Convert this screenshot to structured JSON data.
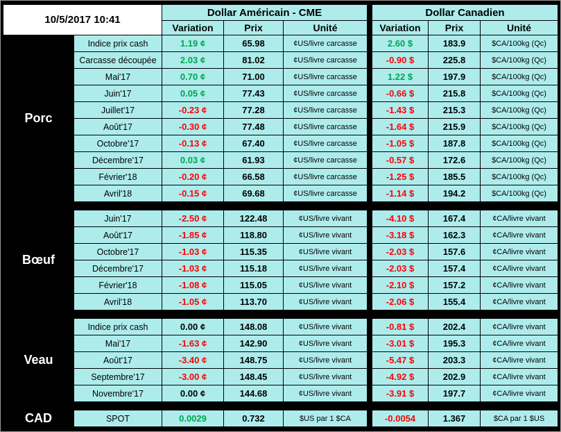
{
  "meta": {
    "timestamp": "10/5/2017 10:41"
  },
  "header": {
    "us_title": "Dollar Américain - CME",
    "ca_title": "Dollar Canadien",
    "columns": {
      "variation": "Variation",
      "prix": "Prix",
      "unite": "Unité"
    }
  },
  "colors": {
    "up": "#00A550",
    "down": "#FF0000",
    "flat": "#000000",
    "cell_bg": "#AEECEC",
    "board_bg": "#000000"
  },
  "sections": [
    {
      "name": "Porc",
      "rows": [
        {
          "label": "Indice prix cash",
          "us": {
            "variation": "1.19 ¢",
            "trend": "up",
            "prix": "65.98",
            "unite": "¢US/livre carcasse"
          },
          "ca": {
            "variation": "2.60 $",
            "trend": "up",
            "prix": "183.9",
            "unite": "$CA/100kg (Qc)"
          }
        },
        {
          "label": "Carcasse découpée",
          "us": {
            "variation": "2.03 ¢",
            "trend": "up",
            "prix": "81.02",
            "unite": "¢US/livre carcasse"
          },
          "ca": {
            "variation": "-0.90 $",
            "trend": "down",
            "prix": "225.8",
            "unite": "$CA/100kg (Qc)"
          }
        },
        {
          "label": "Mai'17",
          "us": {
            "variation": "0.70 ¢",
            "trend": "up",
            "prix": "71.00",
            "unite": "¢US/livre carcasse"
          },
          "ca": {
            "variation": "1.22 $",
            "trend": "up",
            "prix": "197.9",
            "unite": "$CA/100kg (Qc)"
          }
        },
        {
          "label": "Juin'17",
          "us": {
            "variation": "0.05 ¢",
            "trend": "up",
            "prix": "77.43",
            "unite": "¢US/livre carcasse"
          },
          "ca": {
            "variation": "-0.66 $",
            "trend": "down",
            "prix": "215.8",
            "unite": "$CA/100kg (Qc)"
          }
        },
        {
          "label": "Juillet'17",
          "us": {
            "variation": "-0.23 ¢",
            "trend": "down",
            "prix": "77.28",
            "unite": "¢US/livre carcasse"
          },
          "ca": {
            "variation": "-1.43 $",
            "trend": "down",
            "prix": "215.3",
            "unite": "$CA/100kg (Qc)"
          }
        },
        {
          "label": "Août'17",
          "us": {
            "variation": "-0.30 ¢",
            "trend": "down",
            "prix": "77.48",
            "unite": "¢US/livre carcasse"
          },
          "ca": {
            "variation": "-1.64 $",
            "trend": "down",
            "prix": "215.9",
            "unite": "$CA/100kg (Qc)"
          }
        },
        {
          "label": "Octobre'17",
          "us": {
            "variation": "-0.13 ¢",
            "trend": "down",
            "prix": "67.40",
            "unite": "¢US/livre carcasse"
          },
          "ca": {
            "variation": "-1.05 $",
            "trend": "down",
            "prix": "187.8",
            "unite": "$CA/100kg (Qc)"
          }
        },
        {
          "label": "Décembre'17",
          "us": {
            "variation": "0.03 ¢",
            "trend": "up",
            "prix": "61.93",
            "unite": "¢US/livre carcasse"
          },
          "ca": {
            "variation": "-0.57 $",
            "trend": "down",
            "prix": "172.6",
            "unite": "$CA/100kg (Qc)"
          }
        },
        {
          "label": "Février'18",
          "us": {
            "variation": "-0.20 ¢",
            "trend": "down",
            "prix": "66.58",
            "unite": "¢US/livre carcasse"
          },
          "ca": {
            "variation": "-1.25 $",
            "trend": "down",
            "prix": "185.5",
            "unite": "$CA/100kg (Qc)"
          }
        },
        {
          "label": "Avril'18",
          "us": {
            "variation": "-0.15 ¢",
            "trend": "down",
            "prix": "69.68",
            "unite": "¢US/livre carcasse"
          },
          "ca": {
            "variation": "-1.14 $",
            "trend": "down",
            "prix": "194.2",
            "unite": "$CA/100kg (Qc)"
          }
        }
      ]
    },
    {
      "name": "Bœuf",
      "rows": [
        {
          "label": "Juin'17",
          "us": {
            "variation": "-2.50 ¢",
            "trend": "down",
            "prix": "122.48",
            "unite": "¢US/livre vivant"
          },
          "ca": {
            "variation": "-4.10 $",
            "trend": "down",
            "prix": "167.4",
            "unite": "¢CA/livre vivant"
          }
        },
        {
          "label": "Août'17",
          "us": {
            "variation": "-1.85 ¢",
            "trend": "down",
            "prix": "118.80",
            "unite": "¢US/livre vivant"
          },
          "ca": {
            "variation": "-3.18 $",
            "trend": "down",
            "prix": "162.3",
            "unite": "¢CA/livre vivant"
          }
        },
        {
          "label": "Octobre'17",
          "us": {
            "variation": "-1.03 ¢",
            "trend": "down",
            "prix": "115.35",
            "unite": "¢US/livre vivant"
          },
          "ca": {
            "variation": "-2.03 $",
            "trend": "down",
            "prix": "157.6",
            "unite": "¢CA/livre vivant"
          }
        },
        {
          "label": "Décembre'17",
          "us": {
            "variation": "-1.03 ¢",
            "trend": "down",
            "prix": "115.18",
            "unite": "¢US/livre vivant"
          },
          "ca": {
            "variation": "-2.03 $",
            "trend": "down",
            "prix": "157.4",
            "unite": "¢CA/livre vivant"
          }
        },
        {
          "label": "Février'18",
          "us": {
            "variation": "-1.08 ¢",
            "trend": "down",
            "prix": "115.05",
            "unite": "¢US/livre vivant"
          },
          "ca": {
            "variation": "-2.10 $",
            "trend": "down",
            "prix": "157.2",
            "unite": "¢CA/livre vivant"
          }
        },
        {
          "label": "Avril'18",
          "us": {
            "variation": "-1.05 ¢",
            "trend": "down",
            "prix": "113.70",
            "unite": "¢US/livre vivant"
          },
          "ca": {
            "variation": "-2.06 $",
            "trend": "down",
            "prix": "155.4",
            "unite": "¢CA/livre vivant"
          }
        }
      ]
    },
    {
      "name": "Veau",
      "rows": [
        {
          "label": "Indice prix cash",
          "us": {
            "variation": "0.00 ¢",
            "trend": "flat",
            "prix": "148.08",
            "unite": "¢US/livre vivant"
          },
          "ca": {
            "variation": "-0.81 $",
            "trend": "down",
            "prix": "202.4",
            "unite": "¢CA/livre vivant"
          }
        },
        {
          "label": "Mai'17",
          "us": {
            "variation": "-1.63 ¢",
            "trend": "down",
            "prix": "142.90",
            "unite": "¢US/livre vivant"
          },
          "ca": {
            "variation": "-3.01 $",
            "trend": "down",
            "prix": "195.3",
            "unite": "¢CA/livre vivant"
          }
        },
        {
          "label": "Août'17",
          "us": {
            "variation": "-3.40 ¢",
            "trend": "down",
            "prix": "148.75",
            "unite": "¢US/livre vivant"
          },
          "ca": {
            "variation": "-5.47 $",
            "trend": "down",
            "prix": "203.3",
            "unite": "¢CA/livre vivant"
          }
        },
        {
          "label": "Septembre'17",
          "us": {
            "variation": "-3.00 ¢",
            "trend": "down",
            "prix": "148.45",
            "unite": "¢US/livre vivant"
          },
          "ca": {
            "variation": "-4.92 $",
            "trend": "down",
            "prix": "202.9",
            "unite": "¢CA/livre vivant"
          }
        },
        {
          "label": "Novembre'17",
          "us": {
            "variation": "0.00 ¢",
            "trend": "flat",
            "prix": "144.68",
            "unite": "¢US/livre vivant"
          },
          "ca": {
            "variation": "-3.91 $",
            "trend": "down",
            "prix": "197.7",
            "unite": "¢CA/livre vivant"
          }
        }
      ]
    },
    {
      "name": "CAD",
      "rows": [
        {
          "label": "SPOT",
          "us": {
            "variation": "0.0029",
            "trend": "up",
            "prix": "0.732",
            "unite": "$US par 1 $CA"
          },
          "ca": {
            "variation": "-0.0054",
            "trend": "down",
            "prix": "1.367",
            "unite": "$CA par 1 $US"
          }
        }
      ]
    }
  ]
}
